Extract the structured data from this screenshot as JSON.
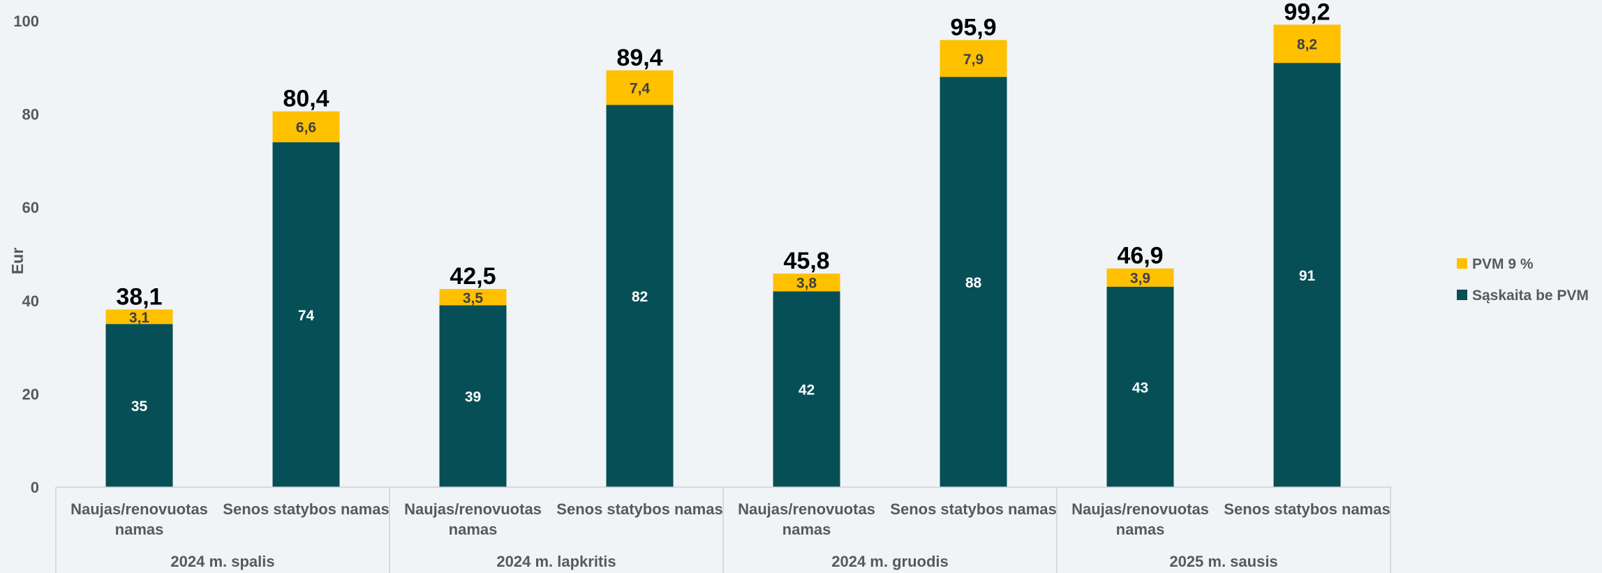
{
  "chart_data": {
    "type": "bar",
    "stacked": true,
    "ylabel": "Eur",
    "ylim": [
      0,
      100
    ],
    "yticks": [
      0,
      20,
      40,
      60,
      80,
      100
    ],
    "groups": [
      {
        "label": "2024 m. spalis",
        "categories": [
          "Naujas/renovuotas namas",
          "Senos statybos namas"
        ]
      },
      {
        "label": "2024 m. lapkritis",
        "categories": [
          "Naujas/renovuotas namas",
          "Senos statybos namas"
        ]
      },
      {
        "label": "2024 m. gruodis",
        "categories": [
          "Naujas/renovuotas namas",
          "Senos statybos namas"
        ]
      },
      {
        "label": "2025 m. sausis",
        "categories": [
          "Naujas/renovuotas namas",
          "Senos statybos namas"
        ]
      }
    ],
    "categories": [
      "Naujas/renovuotas namas",
      "Senos statybos namas",
      "Naujas/renovuotas namas",
      "Senos statybos namas",
      "Naujas/renovuotas namas",
      "Senos statybos namas",
      "Naujas/renovuotas namas",
      "Senos statybos namas"
    ],
    "series": [
      {
        "name": "Sąskaita be PVM",
        "color": "#074f57",
        "values": [
          35,
          74,
          39,
          82,
          42,
          88,
          43,
          91
        ],
        "labels": [
          "35",
          "74",
          "39",
          "82",
          "42",
          "88",
          "43",
          "91"
        ]
      },
      {
        "name": "PVM 9 %",
        "color": "#ffc000",
        "values": [
          3.1,
          6.6,
          3.5,
          7.4,
          3.8,
          7.9,
          3.9,
          8.2
        ],
        "labels": [
          "3,1",
          "6,6",
          "3,5",
          "7,4",
          "3,8",
          "7,9",
          "3,9",
          "8,2"
        ]
      }
    ],
    "totals": [
      38.1,
      80.4,
      42.5,
      89.4,
      45.8,
      95.9,
      46.9,
      99.2
    ],
    "total_labels": [
      "38,1",
      "80,4",
      "42,5",
      "89,4",
      "45,8",
      "95,9",
      "46,9",
      "99,2"
    ],
    "legend": {
      "placement": "right",
      "order": [
        "PVM 9 %",
        "Sąskaita be PVM"
      ]
    },
    "grid": false
  }
}
